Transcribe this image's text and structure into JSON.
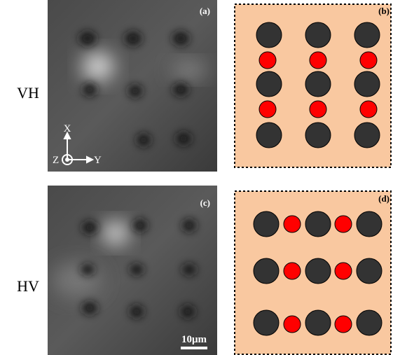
{
  "row_labels": [
    "VH",
    "HV"
  ],
  "panels": [
    {
      "label": "(a)"
    },
    {
      "label": "(b)"
    },
    {
      "label": "(c)"
    },
    {
      "label": "(d)"
    }
  ],
  "axes": {
    "x": "X",
    "y": "Y",
    "z": "Z"
  },
  "scale_bar": "10μm"
}
